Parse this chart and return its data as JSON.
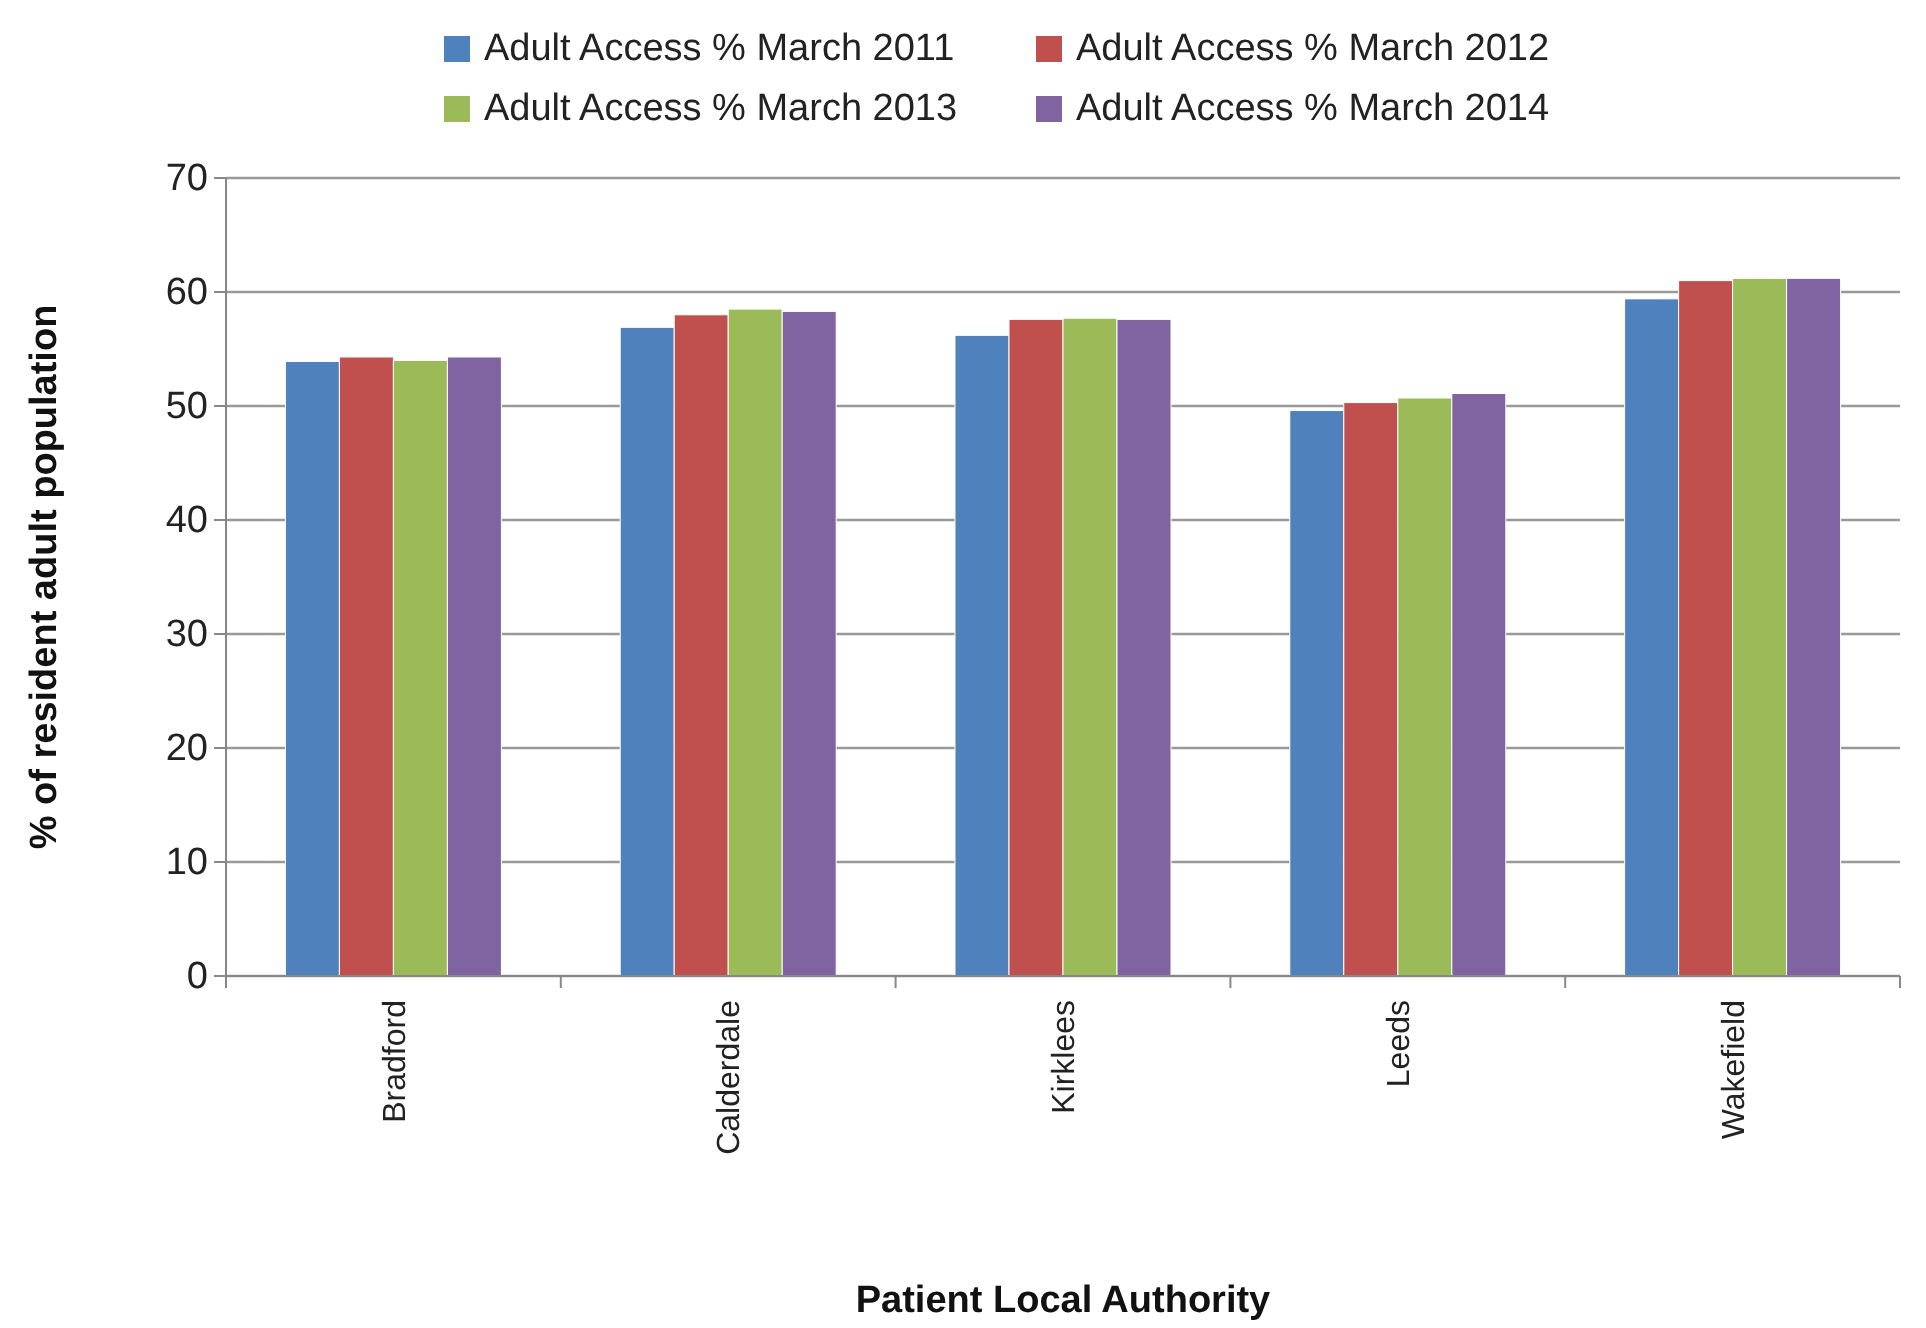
{
  "chart_data": {
    "type": "bar",
    "xlabel": "Patient Local Authority",
    "ylabel": "% of resident adult population",
    "categories": [
      "Bradford",
      "Calderdale",
      "Kirklees",
      "Leeds",
      "Wakefield"
    ],
    "series": [
      {
        "name": "Adult Access % March 2011",
        "color": "#4f81bd",
        "values": [
          53.9,
          56.9,
          56.2,
          49.6,
          59.4
        ]
      },
      {
        "name": "Adult Access % March 2012",
        "color": "#c0504d",
        "values": [
          54.3,
          58.0,
          57.6,
          50.3,
          61.0
        ]
      },
      {
        "name": "Adult Access % March 2013",
        "color": "#9bbb59",
        "values": [
          54.0,
          58.5,
          57.7,
          50.7,
          61.2
        ]
      },
      {
        "name": "Adult Access % March 2014",
        "color": "#8064a2",
        "values": [
          54.3,
          58.3,
          57.6,
          51.1,
          61.2
        ]
      }
    ],
    "ylim": [
      0,
      70
    ],
    "yticks": [
      0,
      10,
      20,
      30,
      40,
      50,
      60,
      70
    ],
    "grid": "y",
    "legend": "top"
  }
}
